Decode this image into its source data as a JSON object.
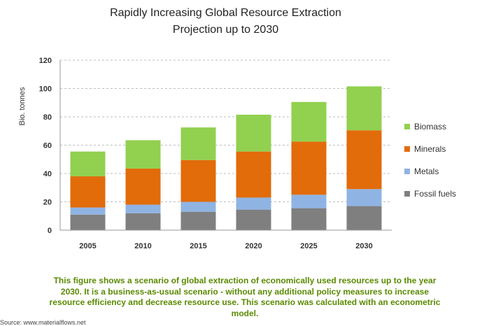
{
  "chart_data": {
    "type": "bar",
    "stacked": true,
    "title": "Rapidly Increasing Global Resource Extraction",
    "subtitle": "Projection up to 2030",
    "ylabel": "Bio. tonnes",
    "xlabel": "",
    "ylim": [
      0,
      120
    ],
    "yticks": [
      0,
      20,
      40,
      60,
      80,
      100,
      120
    ],
    "grid": true,
    "legend_position": "right",
    "categories": [
      "2005",
      "2010",
      "2015",
      "2020",
      "2025",
      "2030"
    ],
    "series": [
      {
        "name": "Fossil fuels",
        "color": "#7f7f7f",
        "values": [
          11,
          12,
          13,
          14.5,
          15.5,
          17
        ]
      },
      {
        "name": "Metals",
        "color": "#8fb4e3",
        "values": [
          5,
          6,
          7,
          8.5,
          9.5,
          12
        ]
      },
      {
        "name": "Minerals",
        "color": "#e26b0a",
        "values": [
          22,
          25.5,
          29.5,
          32.5,
          37.5,
          41.5
        ]
      },
      {
        "name": "Biomass",
        "color": "#92d050",
        "values": [
          17.5,
          20,
          23,
          26,
          28,
          31
        ]
      }
    ]
  },
  "caption": "This figure shows a scenario of global extraction of economically used resources up to the year 2030. It is a business-as-usual scenario - without any additional policy measures to increase resource efficiency and decrease resource use. This scenario was calculated with an econometric model.",
  "source": "Source: www.materialflows.net"
}
